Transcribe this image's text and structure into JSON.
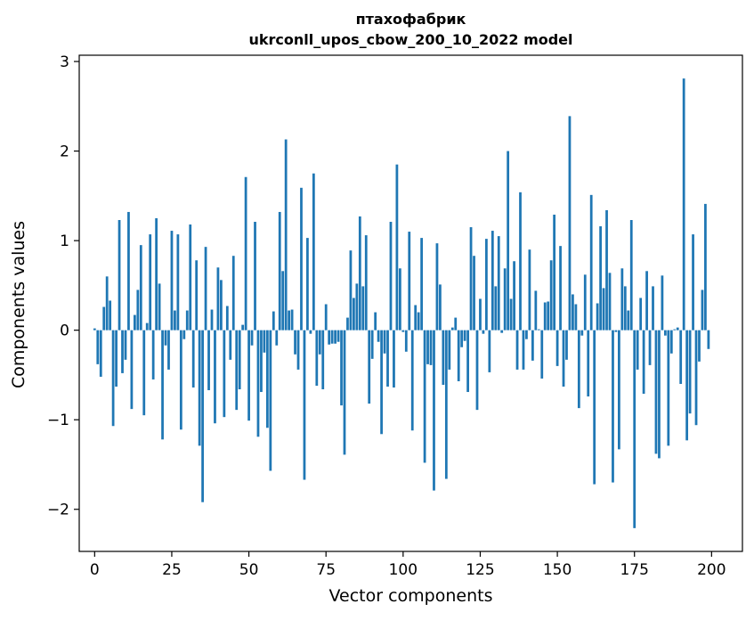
{
  "chart_data": {
    "type": "bar",
    "title": "птахофабрик",
    "subtitle": "ukrconll_upos_cbow_200_10_2022 model",
    "xlabel": "Vector components",
    "ylabel": "Components values",
    "xlim": [
      -5,
      210
    ],
    "ylim": [
      -2.47,
      3.07
    ],
    "xticks": [
      0,
      25,
      50,
      75,
      100,
      125,
      150,
      175,
      200
    ],
    "xtick_labels": [
      "0",
      "25",
      "50",
      "75",
      "100",
      "125",
      "150",
      "175",
      "200"
    ],
    "yticks": [
      -2,
      -1,
      0,
      1,
      2,
      3
    ],
    "ytick_labels": [
      "−2",
      "−1",
      "0",
      "1",
      "2",
      "3"
    ],
    "grid": false,
    "bar_color": "#1f77b4",
    "x": [
      0,
      1,
      2,
      3,
      4,
      5,
      6,
      7,
      8,
      9,
      10,
      11,
      12,
      13,
      14,
      15,
      16,
      17,
      18,
      19,
      20,
      21,
      22,
      23,
      24,
      25,
      26,
      27,
      28,
      29,
      30,
      31,
      32,
      33,
      34,
      35,
      36,
      37,
      38,
      39,
      40,
      41,
      42,
      43,
      44,
      45,
      46,
      47,
      48,
      49,
      50,
      51,
      52,
      53,
      54,
      55,
      56,
      57,
      58,
      59,
      60,
      61,
      62,
      63,
      64,
      65,
      66,
      67,
      68,
      69,
      70,
      71,
      72,
      73,
      74,
      75,
      76,
      77,
      78,
      79,
      80,
      81,
      82,
      83,
      84,
      85,
      86,
      87,
      88,
      89,
      90,
      91,
      92,
      93,
      94,
      95,
      96,
      97,
      98,
      99,
      100,
      101,
      102,
      103,
      104,
      105,
      106,
      107,
      108,
      109,
      110,
      111,
      112,
      113,
      114,
      115,
      116,
      117,
      118,
      119,
      120,
      121,
      122,
      123,
      124,
      125,
      126,
      127,
      128,
      129,
      130,
      131,
      132,
      133,
      134,
      135,
      136,
      137,
      138,
      139,
      140,
      141,
      142,
      143,
      144,
      145,
      146,
      147,
      148,
      149,
      150,
      151,
      152,
      153,
      154,
      155,
      156,
      157,
      158,
      159,
      160,
      161,
      162,
      163,
      164,
      165,
      166,
      167,
      168,
      169,
      170,
      171,
      172,
      173,
      174,
      175,
      176,
      177,
      178,
      179,
      180,
      181,
      182,
      183,
      184,
      185,
      186,
      187,
      188,
      189,
      190,
      191,
      192,
      193,
      194,
      195,
      196,
      197,
      198,
      199
    ],
    "values": [
      0.02,
      -0.38,
      -0.52,
      0.26,
      0.6,
      0.33,
      -1.07,
      -0.63,
      1.23,
      -0.48,
      -0.33,
      1.32,
      -0.88,
      0.17,
      0.45,
      0.95,
      -0.95,
      0.08,
      1.07,
      -0.55,
      1.25,
      0.52,
      -1.22,
      -0.17,
      -0.44,
      1.11,
      0.22,
      1.07,
      -1.11,
      -0.1,
      0.22,
      1.18,
      -0.64,
      0.78,
      -1.29,
      -1.92,
      0.93,
      -0.67,
      0.23,
      -1.04,
      0.7,
      0.56,
      -0.97,
      0.27,
      -0.33,
      0.83,
      -0.89,
      -0.66,
      0.06,
      1.71,
      -1.01,
      -0.17,
      1.21,
      -1.19,
      -0.69,
      -0.25,
      -1.09,
      -1.57,
      0.21,
      -0.17,
      1.32,
      0.66,
      2.13,
      0.22,
      0.23,
      -0.27,
      -0.44,
      1.59,
      -1.67,
      1.03,
      -0.04,
      1.75,
      -0.62,
      -0.27,
      -0.66,
      0.29,
      -0.16,
      -0.15,
      -0.15,
      -0.13,
      -0.84,
      -1.39,
      0.14,
      0.89,
      0.36,
      0.52,
      1.27,
      0.49,
      1.06,
      -0.82,
      -0.32,
      0.2,
      -0.13,
      -1.16,
      -0.26,
      -0.63,
      1.21,
      -0.64,
      1.85,
      0.69,
      -0.02,
      -0.24,
      1.1,
      -1.12,
      0.28,
      0.2,
      1.03,
      -1.48,
      -0.38,
      -0.39,
      -1.79,
      0.97,
      0.51,
      -0.61,
      -1.66,
      -0.44,
      0.03,
      0.14,
      -0.57,
      -0.19,
      -0.12,
      -0.69,
      1.15,
      0.83,
      -0.89,
      0.35,
      -0.04,
      1.02,
      -0.47,
      1.11,
      0.49,
      1.05,
      -0.03,
      0.69,
      2.0,
      0.35,
      0.77,
      -0.44,
      1.54,
      -0.44,
      -0.1,
      0.9,
      -0.34,
      0.44,
      0.01,
      -0.54,
      0.31,
      0.32,
      0.78,
      1.29,
      -0.4,
      0.94,
      -0.63,
      -0.33,
      2.39,
      0.4,
      0.29,
      -0.87,
      -0.06,
      0.62,
      -0.74,
      1.51,
      -1.72,
      0.3,
      1.16,
      0.47,
      1.34,
      0.64,
      -1.7,
      -0.02,
      -1.33,
      0.69,
      0.49,
      0.22,
      1.23,
      -2.21,
      -0.44,
      0.36,
      -0.71,
      0.66,
      -0.39,
      0.49,
      -1.38,
      -1.43,
      0.61,
      -0.06,
      -1.29,
      -0.26,
      0.01,
      0.03,
      -0.6,
      2.81,
      -1.23,
      -0.93,
      1.07,
      -1.06,
      -0.35,
      0.45,
      1.41,
      -0.21
    ]
  }
}
